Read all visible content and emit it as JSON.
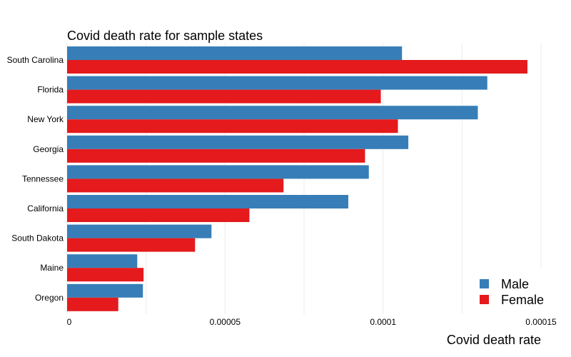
{
  "chart_data": {
    "type": "bar",
    "orientation": "horizontal",
    "title": "Covid death rate for sample states",
    "xlabel": "Covid death rate",
    "ylabel": "",
    "categories": [
      "South Carolina",
      "Florida",
      "New York",
      "Georgia",
      "Tennessee",
      "California",
      "South Dakota",
      "Maine",
      "Oregon"
    ],
    "series": [
      {
        "name": "Male",
        "color": "#377eb8",
        "values": [
          0.000106,
          0.000133,
          0.00013,
          0.000108,
          9.55e-05,
          8.9e-05,
          4.57e-05,
          2.22e-05,
          2.4e-05
        ]
      },
      {
        "name": "Female",
        "color": "#e41a1c",
        "values": [
          0.0001457,
          9.93e-05,
          0.0001047,
          9.43e-05,
          6.85e-05,
          5.77e-05,
          4.05e-05,
          2.42e-05,
          1.62e-05
        ]
      }
    ],
    "xlim": [
      0,
      0.00015
    ],
    "xticks": [
      0,
      5e-05,
      0.0001,
      0.00015
    ],
    "xtick_labels": [
      "0",
      "0.00005",
      "0.0001",
      "0.00015"
    ],
    "grid": true,
    "legend_position": "bottom-right"
  }
}
